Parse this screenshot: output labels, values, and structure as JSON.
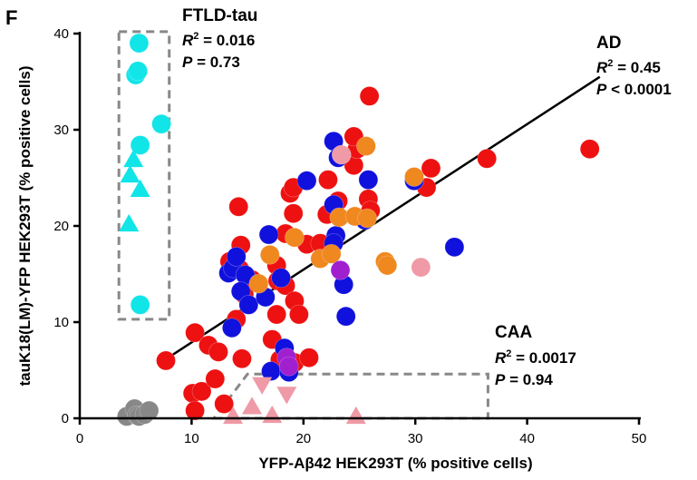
{
  "chart_data": {
    "type": "scatter",
    "panel_label": "F",
    "xlabel": "YFP-Aβ42 HEK293T (% positive cells)",
    "ylabel": "tauK18(LM)-YFP HEK293T (% positive cells)",
    "xlim": [
      0,
      50
    ],
    "ylim": [
      0,
      40
    ],
    "xticks": [
      0,
      10,
      20,
      30,
      40,
      50
    ],
    "yticks": [
      0,
      10,
      20,
      30,
      40
    ],
    "regression": {
      "x1": 7.5,
      "y1": 6.0,
      "x2": 46.5,
      "y2": 35.5
    },
    "groups": [
      {
        "name": "FTLD-tau",
        "r2_prefix": "R",
        "r2_value": "= 0.016",
        "p_prefix": "P",
        "p_value": "= 0.73",
        "box": {
          "x1": 3.5,
          "y1": 10.3,
          "x2": 8.0,
          "y2": 40.2
        }
      },
      {
        "name": "AD",
        "r2_prefix": "R",
        "r2_value": "= 0.45",
        "p_prefix": "P",
        "p_value": "< 0.0001"
      },
      {
        "name": "CAA",
        "r2_prefix": "R",
        "r2_value": "= 0.0017",
        "p_prefix": "P",
        "p_value": "= 0.94",
        "box_polygon": [
          [
            12.0,
            0.0
          ],
          [
            36.5,
            0.0
          ],
          [
            36.5,
            4.6
          ],
          [
            15.0,
            4.6
          ]
        ]
      }
    ],
    "series": [
      {
        "name": "red",
        "marker": "circle",
        "color": "#ee1111",
        "points": [
          [
            7.7,
            6.0
          ],
          [
            10.3,
            8.9
          ],
          [
            11.5,
            7.6
          ],
          [
            12.4,
            6.9
          ],
          [
            10.1,
            2.6
          ],
          [
            10.3,
            0.8
          ],
          [
            10.9,
            2.8
          ],
          [
            12.1,
            4.1
          ],
          [
            12.9,
            1.5
          ],
          [
            14.5,
            6.2
          ],
          [
            14.0,
            10.3
          ],
          [
            14.3,
            15.5
          ],
          [
            13.4,
            16.3
          ],
          [
            14.4,
            18.0
          ],
          [
            15.4,
            14.4
          ],
          [
            14.7,
            12.9
          ],
          [
            17.6,
            15.9
          ],
          [
            17.7,
            14.3
          ],
          [
            18.4,
            13.8
          ],
          [
            19.2,
            12.2
          ],
          [
            19.6,
            10.8
          ],
          [
            17.6,
            10.8
          ],
          [
            17.2,
            8.2
          ],
          [
            17.9,
            6.1
          ],
          [
            19.2,
            5.8
          ],
          [
            20.5,
            6.3
          ],
          [
            18.4,
            19.2
          ],
          [
            19.1,
            21.3
          ],
          [
            18.8,
            23.4
          ],
          [
            19.1,
            24.0
          ],
          [
            20.3,
            18.1
          ],
          [
            21.5,
            18.2
          ],
          [
            22.1,
            21.2
          ],
          [
            22.2,
            24.8
          ],
          [
            23.1,
            22.6
          ],
          [
            24.5,
            26.3
          ],
          [
            24.8,
            28.0
          ],
          [
            24.5,
            29.3
          ],
          [
            25.8,
            22.8
          ],
          [
            26.0,
            21.6
          ],
          [
            25.9,
            33.5
          ],
          [
            31.0,
            24.0
          ],
          [
            31.4,
            26.0
          ],
          [
            36.4,
            27.0
          ],
          [
            45.6,
            28.0
          ],
          [
            14.2,
            22.0
          ]
        ]
      },
      {
        "name": "blue",
        "marker": "circle",
        "color": "#1111dd",
        "points": [
          [
            13.3,
            15.1
          ],
          [
            13.7,
            15.6
          ],
          [
            14.0,
            16.8
          ],
          [
            14.8,
            14.9
          ],
          [
            14.4,
            13.2
          ],
          [
            15.1,
            11.8
          ],
          [
            13.6,
            9.4
          ],
          [
            16.6,
            12.6
          ],
          [
            16.9,
            19.1
          ],
          [
            18.0,
            14.6
          ],
          [
            18.3,
            7.3
          ],
          [
            17.1,
            4.9
          ],
          [
            18.7,
            4.8
          ],
          [
            20.3,
            24.7
          ],
          [
            22.7,
            28.8
          ],
          [
            23.1,
            27.1
          ],
          [
            22.7,
            22.2
          ],
          [
            22.9,
            19.0
          ],
          [
            22.7,
            18.2
          ],
          [
            23.6,
            13.9
          ],
          [
            23.8,
            10.6
          ],
          [
            25.5,
            20.6
          ],
          [
            25.8,
            24.8
          ],
          [
            29.9,
            24.7
          ],
          [
            33.5,
            17.8
          ]
        ]
      },
      {
        "name": "orange",
        "marker": "circle",
        "color": "#f08820",
        "points": [
          [
            16.0,
            14.0
          ],
          [
            17.0,
            17.0
          ],
          [
            19.2,
            18.8
          ],
          [
            21.5,
            16.6
          ],
          [
            22.5,
            17.1
          ],
          [
            23.2,
            20.9
          ],
          [
            24.6,
            21.0
          ],
          [
            25.6,
            28.3
          ],
          [
            25.7,
            20.8
          ],
          [
            27.3,
            16.3
          ],
          [
            27.5,
            15.9
          ],
          [
            29.9,
            25.1
          ]
        ]
      },
      {
        "name": "purple",
        "marker": "circle",
        "color": "#a020d0",
        "points": [
          [
            18.5,
            6.3
          ],
          [
            18.7,
            5.4
          ],
          [
            23.3,
            15.4
          ]
        ]
      },
      {
        "name": "pink",
        "marker": "circle",
        "color": "#ef9aa6",
        "points": [
          [
            23.4,
            27.4
          ],
          [
            30.5,
            15.7
          ]
        ]
      },
      {
        "name": "gray",
        "marker": "circle",
        "color": "#888888",
        "points": [
          [
            4.2,
            0.2
          ],
          [
            4.9,
            1.0
          ],
          [
            5.1,
            0.3
          ],
          [
            5.3,
            0.2
          ],
          [
            5.8,
            0.4
          ],
          [
            6.2,
            0.8
          ]
        ]
      },
      {
        "name": "cyan",
        "marker": "circle",
        "color": "#11e5e8",
        "points": [
          [
            5.3,
            39.0
          ],
          [
            5.0,
            35.7
          ],
          [
            5.2,
            36.1
          ],
          [
            7.3,
            30.6
          ],
          [
            5.4,
            28.4
          ],
          [
            5.4,
            11.8
          ]
        ]
      },
      {
        "name": "cyan-triangles",
        "marker": "triangle-up",
        "color": "#11e5e8",
        "points": [
          [
            4.8,
            26.9
          ],
          [
            5.4,
            23.8
          ],
          [
            4.5,
            25.3
          ],
          [
            4.4,
            20.2
          ]
        ]
      },
      {
        "name": "pink-triangles-up",
        "marker": "triangle-up",
        "color": "#ef9aa6",
        "points": [
          [
            13.7,
            0.2
          ],
          [
            15.4,
            1.2
          ],
          [
            17.2,
            0.3
          ],
          [
            24.7,
            0.2
          ]
        ]
      },
      {
        "name": "pink-triangles-down",
        "marker": "triangle-down",
        "color": "#ef9aa6",
        "points": [
          [
            16.3,
            3.5
          ],
          [
            18.5,
            2.5
          ]
        ]
      }
    ]
  }
}
